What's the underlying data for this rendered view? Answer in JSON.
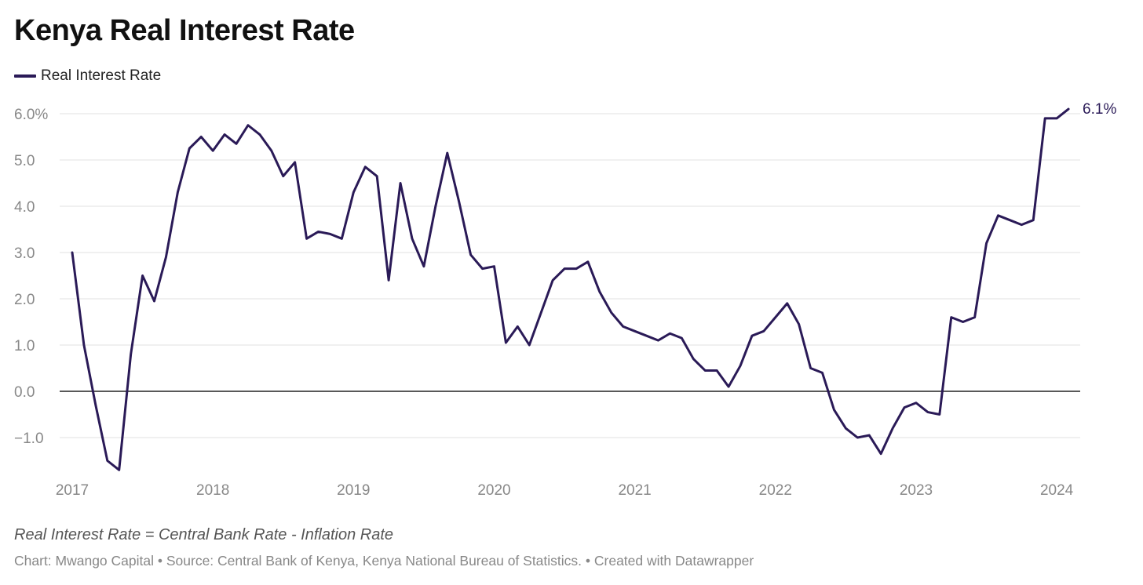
{
  "chart_data": {
    "type": "line",
    "title": "Kenya Real Interest Rate",
    "xlabel": "",
    "ylabel": "",
    "ylim": [
      -1.7,
      6.1
    ],
    "x_ticks": [
      "2017",
      "2018",
      "2019",
      "2020",
      "2021",
      "2022",
      "2023",
      "2024"
    ],
    "y_ticks": [
      {
        "value": 6,
        "label": "6.0%"
      },
      {
        "value": 5,
        "label": "5.0"
      },
      {
        "value": 4,
        "label": "4.0"
      },
      {
        "value": 3,
        "label": "3.0"
      },
      {
        "value": 2,
        "label": "2.0"
      },
      {
        "value": 1,
        "label": "1.0"
      },
      {
        "value": 0,
        "label": "0.0"
      },
      {
        "value": -1,
        "label": "−1.0"
      }
    ],
    "grid": true,
    "legend_position": "top-left",
    "end_label": "6.1%",
    "series": [
      {
        "name": "Real Interest Rate",
        "color": "#2a1a57",
        "x": [
          "2017-01",
          "2017-02",
          "2017-03",
          "2017-04",
          "2017-05",
          "2017-06",
          "2017-07",
          "2017-08",
          "2017-09",
          "2017-10",
          "2017-11",
          "2017-12",
          "2018-01",
          "2018-02",
          "2018-03",
          "2018-04",
          "2018-05",
          "2018-06",
          "2018-07",
          "2018-08",
          "2018-09",
          "2018-10",
          "2018-11",
          "2018-12",
          "2019-01",
          "2019-02",
          "2019-03",
          "2019-04",
          "2019-05",
          "2019-06",
          "2019-07",
          "2019-08",
          "2019-09",
          "2019-10",
          "2019-11",
          "2019-12",
          "2020-01",
          "2020-02",
          "2020-03",
          "2020-04",
          "2020-05",
          "2020-06",
          "2020-07",
          "2020-08",
          "2020-09",
          "2020-10",
          "2020-11",
          "2020-12",
          "2021-01",
          "2021-02",
          "2021-03",
          "2021-04",
          "2021-05",
          "2021-06",
          "2021-07",
          "2021-08",
          "2021-09",
          "2021-10",
          "2021-11",
          "2021-12",
          "2022-01",
          "2022-02",
          "2022-03",
          "2022-04",
          "2022-05",
          "2022-06",
          "2022-07",
          "2022-08",
          "2022-09",
          "2022-10",
          "2022-11",
          "2022-12",
          "2023-01",
          "2023-02",
          "2023-03",
          "2023-04",
          "2023-05",
          "2023-06",
          "2023-07",
          "2023-08",
          "2023-09",
          "2023-10",
          "2023-11",
          "2023-12",
          "2024-01",
          "2024-02"
        ],
        "values": [
          3.0,
          1.0,
          -0.3,
          -1.5,
          -1.7,
          0.8,
          2.5,
          1.95,
          2.9,
          4.3,
          5.25,
          5.5,
          5.2,
          5.55,
          5.35,
          5.75,
          5.55,
          5.2,
          4.65,
          4.95,
          3.3,
          3.45,
          3.4,
          3.3,
          4.3,
          4.85,
          4.65,
          2.4,
          4.5,
          3.3,
          2.7,
          4.0,
          5.15,
          4.1,
          2.95,
          2.65,
          2.7,
          1.05,
          1.4,
          1.0,
          1.7,
          2.4,
          2.65,
          2.65,
          2.8,
          2.15,
          1.7,
          1.4,
          1.3,
          1.2,
          1.1,
          1.25,
          1.15,
          0.7,
          0.45,
          0.45,
          0.1,
          0.55,
          1.2,
          1.3,
          1.6,
          1.9,
          1.45,
          0.5,
          0.4,
          -0.4,
          -0.8,
          -1.0,
          -0.95,
          -1.35,
          -0.8,
          -0.35,
          -0.25,
          -0.45,
          -0.5,
          1.6,
          1.5,
          1.6,
          3.2,
          3.8,
          3.7,
          3.6,
          3.7,
          5.9,
          5.9,
          6.1
        ]
      }
    ]
  },
  "note": "Real Interest Rate = Central Bank Rate - Inflation Rate",
  "footer": "Chart: Mwango Capital • Source: Central Bank of Kenya, Kenya National Bureau of Statistics. • Created with Datawrapper"
}
